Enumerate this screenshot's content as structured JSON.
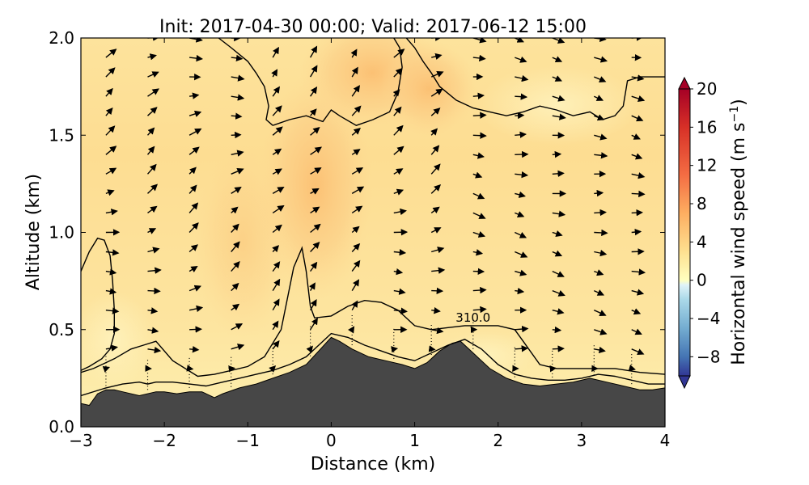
{
  "chart_data": {
    "type": "heatmap",
    "title": "Init: 2017-04-30 00:00; Valid: 2017-06-12 15:00",
    "xlabel": "Distance (km)",
    "ylabel": "Altitude (km)",
    "xlim": [
      -3,
      4
    ],
    "ylim": [
      0,
      2
    ],
    "x_ticks": [
      "−3",
      "−2",
      "−1",
      "0",
      "1",
      "2",
      "3",
      "4"
    ],
    "x_tick_values": [
      -3,
      -2,
      -1,
      0,
      1,
      2,
      3,
      4
    ],
    "y_ticks": [
      "0.0",
      "0.5",
      "1.0",
      "1.5",
      "2.0"
    ],
    "y_tick_values": [
      0.0,
      0.5,
      1.0,
      1.5,
      2.0
    ],
    "colorbar": {
      "label": "Horizontal wind speed (m s",
      "label_superscript": "−1",
      "label_close": ")",
      "range": [
        -10,
        20
      ],
      "ticks": [
        "20",
        "16",
        "12",
        "8",
        "4",
        "0",
        "−4",
        "−8"
      ],
      "tick_values": [
        20,
        16,
        12,
        8,
        4,
        0,
        -4,
        -8
      ],
      "colormap": "RdYlBu_r",
      "extend": "both"
    },
    "contour_label": "310.0",
    "contour_label_pos": [
      1.7,
      0.54
    ],
    "terrain": {
      "x": [
        -3.0,
        -2.9,
        -2.8,
        -2.7,
        -2.6,
        -2.5,
        -2.3,
        -2.1,
        -2.0,
        -1.85,
        -1.7,
        -1.55,
        -1.4,
        -1.3,
        -1.1,
        -0.9,
        -0.7,
        -0.5,
        -0.3,
        -0.15,
        0.0,
        0.1,
        0.25,
        0.45,
        0.65,
        0.85,
        1.0,
        1.15,
        1.3,
        1.45,
        1.55,
        1.7,
        1.9,
        2.1,
        2.3,
        2.5,
        2.7,
        2.9,
        3.1,
        3.3,
        3.5,
        3.7,
        3.85,
        4.0
      ],
      "y": [
        0.12,
        0.11,
        0.17,
        0.19,
        0.19,
        0.18,
        0.16,
        0.18,
        0.18,
        0.17,
        0.18,
        0.18,
        0.15,
        0.17,
        0.2,
        0.22,
        0.25,
        0.28,
        0.32,
        0.39,
        0.46,
        0.44,
        0.4,
        0.36,
        0.34,
        0.32,
        0.3,
        0.33,
        0.39,
        0.43,
        0.44,
        0.38,
        0.3,
        0.25,
        0.22,
        0.21,
        0.22,
        0.23,
        0.25,
        0.23,
        0.21,
        0.19,
        0.19,
        0.2
      ],
      "color": "#474747"
    },
    "wind_vectors": {
      "columns_x": [
        -2.7,
        -2.2,
        -1.7,
        -1.2,
        -0.7,
        -0.25,
        0.25,
        0.75,
        1.2,
        1.7,
        2.2,
        2.65,
        3.15,
        3.6
      ],
      "levels_y": [
        0.3,
        0.4,
        0.5,
        0.6,
        0.7,
        0.8,
        0.9,
        1.0,
        1.1,
        1.2,
        1.3,
        1.4,
        1.5,
        1.6,
        1.7,
        1.8,
        1.9,
        2.0
      ]
    },
    "contours": [
      {
        "x": [
          -3.0,
          -2.7,
          -2.5,
          -2.3,
          -2.2,
          -2.1,
          -1.9,
          -1.7,
          -1.5,
          -1.3,
          -1.1,
          -0.9,
          -0.7,
          -0.5,
          -0.3,
          -0.1,
          0.0,
          0.2,
          0.4,
          0.6,
          0.8,
          1.0,
          1.2,
          1.4,
          1.6,
          1.8,
          2.0,
          2.2,
          2.4,
          2.6,
          2.8,
          3.0,
          3.2,
          3.4,
          3.6,
          3.8,
          4.0
        ],
        "y": [
          0.16,
          0.2,
          0.22,
          0.23,
          0.22,
          0.23,
          0.23,
          0.22,
          0.21,
          0.23,
          0.25,
          0.27,
          0.29,
          0.32,
          0.36,
          0.44,
          0.48,
          0.46,
          0.42,
          0.39,
          0.36,
          0.34,
          0.38,
          0.42,
          0.45,
          0.4,
          0.32,
          0.27,
          0.25,
          0.24,
          0.24,
          0.25,
          0.27,
          0.26,
          0.24,
          0.22,
          0.22
        ]
      },
      {
        "x": [
          -3.0,
          -2.85,
          -2.6,
          -2.4,
          -2.25,
          -2.1,
          -1.9,
          -1.6,
          -1.4,
          -1.2,
          -1.0,
          -0.8,
          -0.6,
          -0.45,
          -0.35,
          -0.3,
          -0.25,
          -0.2,
          0.0,
          0.2,
          0.4,
          0.6,
          0.8,
          1.0,
          1.2,
          1.4,
          1.6,
          1.8,
          2.0,
          2.2,
          2.3,
          2.5,
          2.7,
          3.0,
          3.2,
          3.4,
          3.7,
          4.0
        ],
        "y": [
          0.28,
          0.3,
          0.35,
          0.4,
          0.42,
          0.44,
          0.34,
          0.26,
          0.27,
          0.29,
          0.31,
          0.36,
          0.5,
          0.82,
          0.92,
          0.8,
          0.62,
          0.56,
          0.57,
          0.62,
          0.65,
          0.64,
          0.6,
          0.52,
          0.5,
          0.51,
          0.52,
          0.52,
          0.52,
          0.5,
          0.44,
          0.32,
          0.3,
          0.3,
          0.3,
          0.3,
          0.28,
          0.27
        ]
      },
      {
        "x": [
          -3.0,
          -2.9,
          -2.8,
          -2.72,
          -2.65,
          -2.62,
          -2.6,
          -2.6,
          -2.65,
          -2.75,
          -2.9,
          -3.0
        ],
        "y": [
          0.8,
          0.9,
          0.97,
          0.96,
          0.88,
          0.75,
          0.6,
          0.48,
          0.4,
          0.35,
          0.31,
          0.29
        ]
      },
      {
        "x": [
          -1.35,
          -1.2,
          -1.0,
          -0.9,
          -0.8,
          -0.75,
          -0.78,
          -0.7
        ],
        "y": [
          2.0,
          1.95,
          1.88,
          1.82,
          1.75,
          1.65,
          1.58,
          1.55
        ]
      },
      {
        "x": [
          -0.7,
          -0.5,
          -0.3,
          -0.1,
          0.0,
          0.1,
          0.3,
          0.5,
          0.7,
          0.8,
          0.85,
          0.82,
          0.75
        ],
        "y": [
          1.55,
          1.58,
          1.6,
          1.57,
          1.63,
          1.6,
          1.55,
          1.58,
          1.62,
          1.72,
          1.85,
          1.95,
          2.0
        ]
      },
      {
        "x": [
          0.9,
          1.0,
          1.1,
          1.2,
          1.3,
          1.5,
          1.7,
          1.9,
          2.1,
          2.3,
          2.5,
          2.7,
          2.9,
          3.1,
          3.25,
          3.4,
          3.5,
          3.55,
          3.7,
          3.85,
          4.0
        ],
        "y": [
          2.0,
          1.95,
          1.88,
          1.82,
          1.75,
          1.68,
          1.64,
          1.62,
          1.6,
          1.62,
          1.65,
          1.63,
          1.6,
          1.62,
          1.58,
          1.6,
          1.65,
          1.78,
          1.8,
          1.8,
          1.8
        ]
      }
    ]
  }
}
